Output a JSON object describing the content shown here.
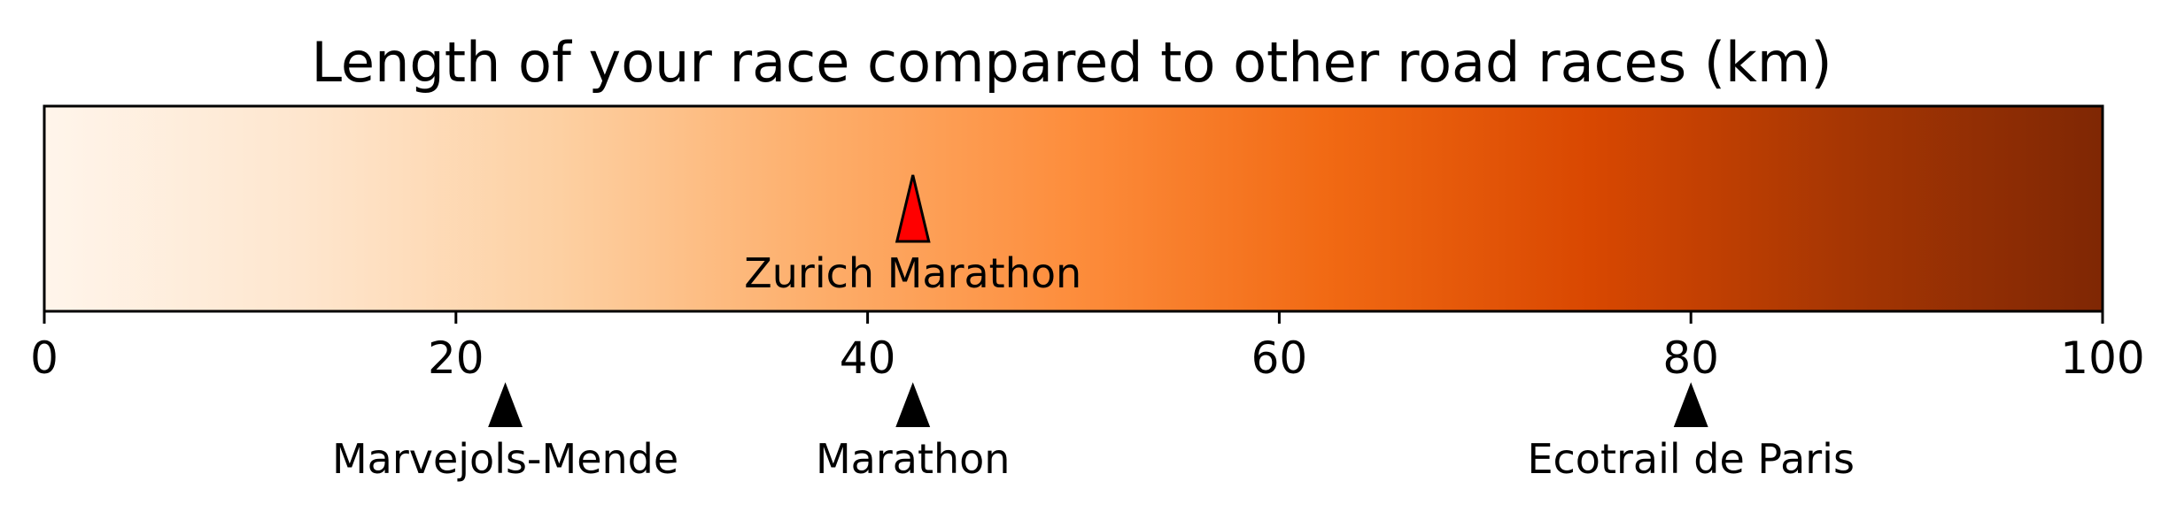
{
  "chart_data": {
    "type": "colorbar",
    "title": "Length of your race compared to other road races (km)",
    "xlim": [
      0,
      100
    ],
    "ticks": [
      0,
      20,
      40,
      60,
      80,
      100
    ],
    "tick_labels": [
      "0",
      "20",
      "40",
      "60",
      "80",
      "100"
    ],
    "colormap": "Oranges",
    "colormap_stops": [
      "#fff5eb",
      "#fee6ce",
      "#fdd0a2",
      "#fdae6b",
      "#fd8d3c",
      "#f16913",
      "#d94801",
      "#a63603",
      "#7f2704"
    ],
    "highlight": {
      "label": "Zurich Marathon",
      "value": 42.2,
      "color": "#ff0000"
    },
    "references": [
      {
        "label": "Marvejols-Mende",
        "value": 22.4
      },
      {
        "label": "Marathon",
        "value": 42.2
      },
      {
        "label": "Ecotrail de Paris",
        "value": 80
      }
    ],
    "grid": false
  }
}
